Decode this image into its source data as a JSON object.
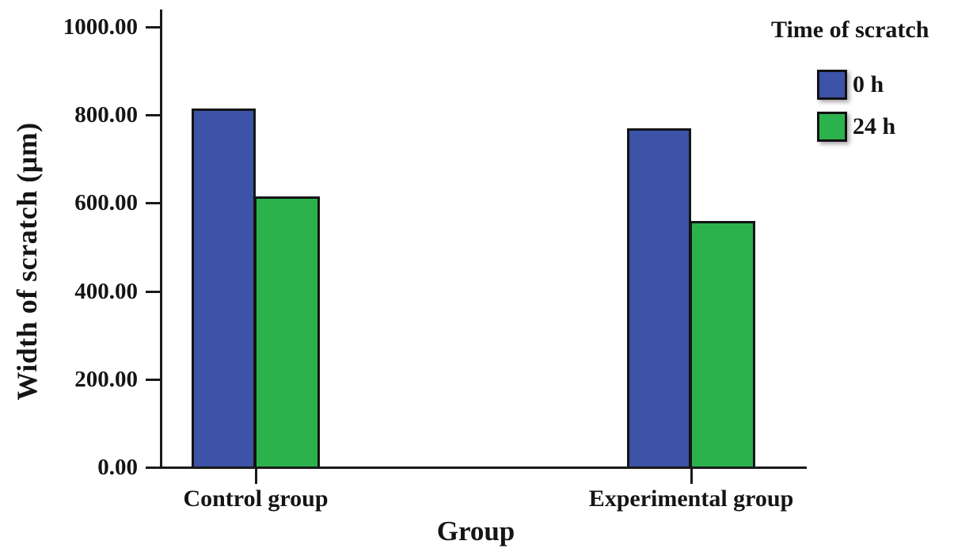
{
  "chart_data": {
    "type": "bar",
    "title": "",
    "categories": [
      "Control group",
      "Experimental group"
    ],
    "series": [
      {
        "name": "0 h",
        "color": "#3C53A8",
        "values": [
          815,
          770
        ]
      },
      {
        "name": "24 h",
        "color": "#2CB24D",
        "values": [
          615,
          560
        ]
      }
    ],
    "xlabel": "Group",
    "ylabel": "Width of scratch (μm)",
    "ylim": [
      0,
      1000
    ],
    "yticks": [
      0,
      200,
      400,
      600,
      800,
      1000
    ],
    "ytick_labels": [
      "0.00",
      "200.00",
      "400.00",
      "600.00",
      "800.00",
      "1000.00"
    ],
    "legend_title": "Time of scratch",
    "legend_position": "top-right",
    "grid": false,
    "axis_color": "#1a1a1a",
    "bar_outline_color": "#141414"
  }
}
